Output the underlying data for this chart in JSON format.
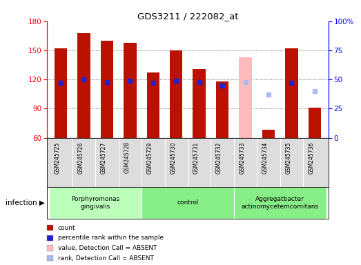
{
  "title": "GDS3211 / 222082_at",
  "samples": [
    "GSM245725",
    "GSM245726",
    "GSM245727",
    "GSM245728",
    "GSM245729",
    "GSM245730",
    "GSM245731",
    "GSM245732",
    "GSM245733",
    "GSM245734",
    "GSM245735",
    "GSM245736"
  ],
  "count_values": [
    152,
    168,
    160,
    158,
    127,
    150,
    131,
    118,
    null,
    68,
    152,
    91
  ],
  "count_absent": [
    null,
    null,
    null,
    null,
    null,
    null,
    null,
    null,
    143,
    null,
    null,
    null
  ],
  "percentile_values": [
    47,
    50,
    48,
    49,
    47,
    49,
    48,
    45,
    null,
    null,
    47,
    null
  ],
  "percentile_absent": [
    null,
    null,
    null,
    null,
    null,
    null,
    null,
    null,
    48,
    37,
    null,
    40
  ],
  "ylim_left": [
    60,
    180
  ],
  "ylim_right": [
    0,
    100
  ],
  "yticks_left": [
    60,
    90,
    120,
    150,
    180
  ],
  "yticks_right": [
    0,
    25,
    50,
    75,
    100
  ],
  "groups": [
    {
      "label": "Porphyromonas\ngingivalis",
      "start": 0,
      "end": 4,
      "color": "#bbffbb"
    },
    {
      "label": "control",
      "start": 4,
      "end": 8,
      "color": "#88ee88"
    },
    {
      "label": "Aggregatbacter\nactinomycetemcomitans",
      "start": 8,
      "end": 12,
      "color": "#88ee88"
    }
  ],
  "bar_width": 0.55,
  "dot_size": 22,
  "bar_color_present": "#bb1100",
  "bar_color_absent": "#ffbbbb",
  "dot_color_present": "#2222cc",
  "dot_color_absent": "#aabbee",
  "infection_label": "infection",
  "legend_items": [
    {
      "label": "count",
      "color": "#bb1100"
    },
    {
      "label": "percentile rank within the sample",
      "color": "#2222cc"
    },
    {
      "label": "value, Detection Call = ABSENT",
      "color": "#ffbbbb"
    },
    {
      "label": "rank, Detection Call = ABSENT",
      "color": "#aabbee"
    }
  ],
  "bg_color": "#ffffff",
  "sample_box_color": "#dddddd",
  "gridlines": [
    90,
    120,
    150
  ]
}
